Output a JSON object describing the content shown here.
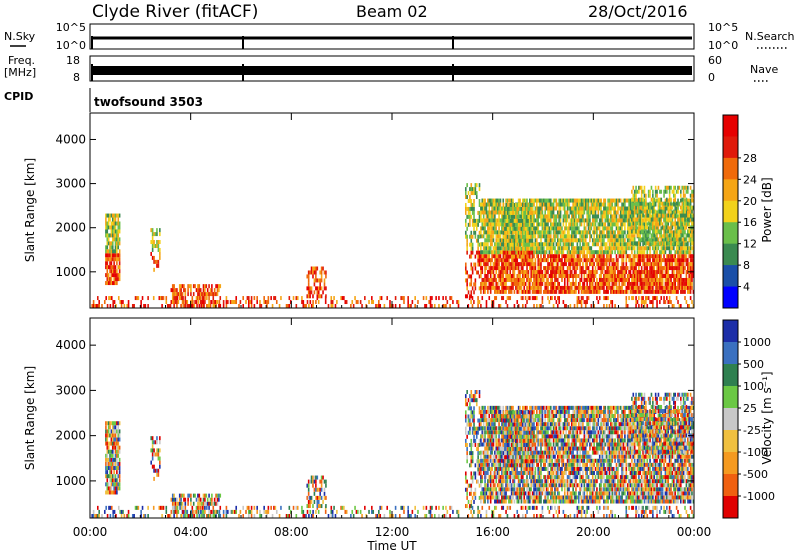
{
  "header": {
    "site": "Clyde River (fitACF)",
    "beam": "Beam 02",
    "date": "28/Oct/2016"
  },
  "nsky_panel": {
    "left_label": "N.Sky",
    "left_ticks": [
      "10^5",
      "10^0"
    ],
    "right_ticks": [
      "10^5",
      "10^0"
    ],
    "right_label": "N.Search"
  },
  "freq_panel": {
    "left_label_1": "Freq.",
    "left_label_2": "[MHz]",
    "left_ticks": [
      "18",
      "8"
    ],
    "right_ticks": [
      "60",
      "0"
    ],
    "right_label": "Nave"
  },
  "cpid": {
    "label": "CPID",
    "value": "twofsound 3503"
  },
  "colors": {
    "power": [
      "#0000ff",
      "#1a4fa8",
      "#3a8a50",
      "#6abf4a",
      "#f2d21b",
      "#f5a515",
      "#f06a0a",
      "#e01a0a",
      "#e60000"
    ],
    "velocity": [
      "#1c2ea8",
      "#3a70c0",
      "#2f8050",
      "#6bc844",
      "#c8c8c8",
      "#f0c040",
      "#f59a20",
      "#f06010",
      "#e00000"
    ]
  },
  "chart_data": [
    {
      "type": "heatmap",
      "title": "Power",
      "ylabel": "Slant Range [km]",
      "ylim": [
        180,
        4600
      ],
      "yticks": [
        "1000",
        "2000",
        "3000",
        "4000"
      ],
      "xticks": [
        "00:00",
        "04:00",
        "08:00",
        "12:00",
        "16:00",
        "20:00",
        "00:00"
      ],
      "colorbar": {
        "label": "Power [dB]",
        "ticks": [
          "4",
          "8",
          "12",
          "16",
          "20",
          "24",
          "28"
        ]
      }
    },
    {
      "type": "heatmap",
      "title": "Velocity",
      "ylabel": "Slant Range [km]",
      "ylim": [
        180,
        4600
      ],
      "yticks": [
        "1000",
        "2000",
        "3000",
        "4000"
      ],
      "xticks": [
        "00:00",
        "04:00",
        "08:00",
        "12:00",
        "16:00",
        "20:00",
        "00:00"
      ],
      "xlabel": "Time UT",
      "colorbar": {
        "label": "Velocity [m s⁻¹]",
        "ticks": [
          "1000",
          "500",
          "100",
          "25",
          "-25",
          "-100",
          "-500",
          "-1000"
        ]
      }
    }
  ]
}
